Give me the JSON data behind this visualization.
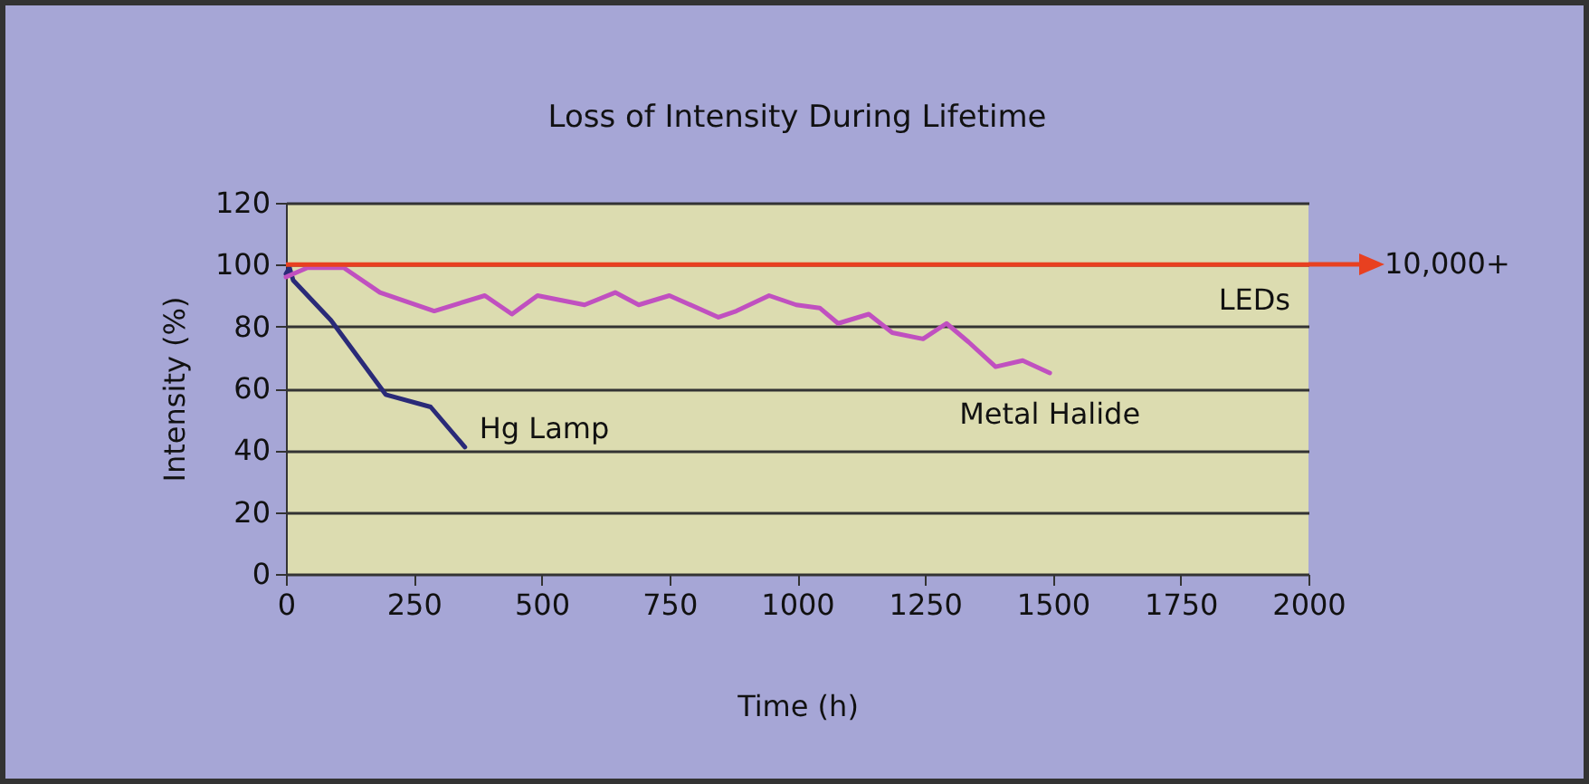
{
  "chart_data": {
    "type": "line",
    "title": "Loss of Intensity During Lifetime",
    "xlabel": "Time (h)",
    "ylabel": "Intensity (%)",
    "xlim": [
      0,
      2000
    ],
    "xticks": [
      0,
      250,
      500,
      750,
      1000,
      1250,
      1500,
      1750,
      2000
    ],
    "ylim": [
      0,
      120
    ],
    "yticks": [
      0,
      20,
      40,
      60,
      80,
      100,
      120
    ],
    "grid": "y",
    "series": [
      {
        "name": "Hg Lamp",
        "color": "#2a2a78",
        "x": [
          0,
          7,
          14,
          88,
          195,
          283,
          350
        ],
        "values": [
          97,
          99,
          95,
          82,
          58,
          54,
          41
        ]
      },
      {
        "name": "Metal Halide",
        "color": "#c050c0",
        "x": [
          0,
          42,
          113,
          184,
          290,
          389,
          442,
          492,
          584,
          644,
          690,
          750,
          846,
          881,
          945,
          998,
          1044,
          1080,
          1140,
          1186,
          1246,
          1292,
          1335,
          1388,
          1441,
          1494
        ],
        "values": [
          96,
          99,
          99,
          91,
          85,
          90,
          84,
          90,
          87,
          91,
          87,
          90,
          83,
          85,
          90,
          87,
          86,
          81,
          84,
          78,
          76,
          81,
          75,
          67,
          69,
          65
        ]
      }
    ],
    "ref_lines": [
      {
        "axis": "y",
        "value": 100,
        "label": "LEDs",
        "color": "#e84020"
      }
    ],
    "annotations": [
      "10,000+"
    ]
  }
}
